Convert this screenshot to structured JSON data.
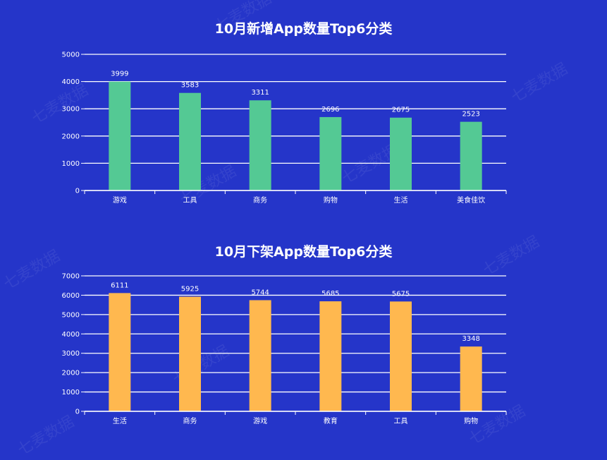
{
  "watermark_text": "七麦数据",
  "charts": [
    {
      "title": "10月新增App数量Top6分类",
      "bar_color": "#54c994",
      "chart_data": {
        "type": "bar",
        "title": "10月新增App数量Top6分类",
        "categories": [
          "游戏",
          "工具",
          "商务",
          "购物",
          "生活",
          "美食佳饮"
        ],
        "values": [
          3999,
          3583,
          3311,
          2696,
          2675,
          2523
        ],
        "data_labels": [
          "3999",
          "3583",
          "3311",
          "2696",
          "2675",
          "2523"
        ],
        "ylim": [
          0,
          5000
        ],
        "yticks": [
          "0",
          "1000",
          "2000",
          "3000",
          "4000",
          "5000"
        ],
        "ytick_values": [
          0,
          1000,
          2000,
          3000,
          4000,
          5000
        ],
        "grid": true,
        "xlabel": "",
        "ylabel": ""
      }
    },
    {
      "title": "10月下架App数量Top6分类",
      "bar_color": "#ffb84f",
      "chart_data": {
        "type": "bar",
        "title": "10月下架App数量Top6分类",
        "categories": [
          "生活",
          "商务",
          "游戏",
          "教育",
          "工具",
          "购物"
        ],
        "values": [
          6111,
          5925,
          5744,
          5685,
          5675,
          3348
        ],
        "data_labels": [
          "6111",
          "5925",
          "5744",
          "5685",
          "5675",
          "3348"
        ],
        "ylim": [
          0,
          7000
        ],
        "yticks": [
          "0",
          "1000",
          "2000",
          "3000",
          "4000",
          "5000",
          "6000",
          "7000"
        ],
        "ytick_values": [
          0,
          1000,
          2000,
          3000,
          4000,
          5000,
          6000,
          7000
        ],
        "grid": true,
        "xlabel": "",
        "ylabel": ""
      }
    }
  ]
}
